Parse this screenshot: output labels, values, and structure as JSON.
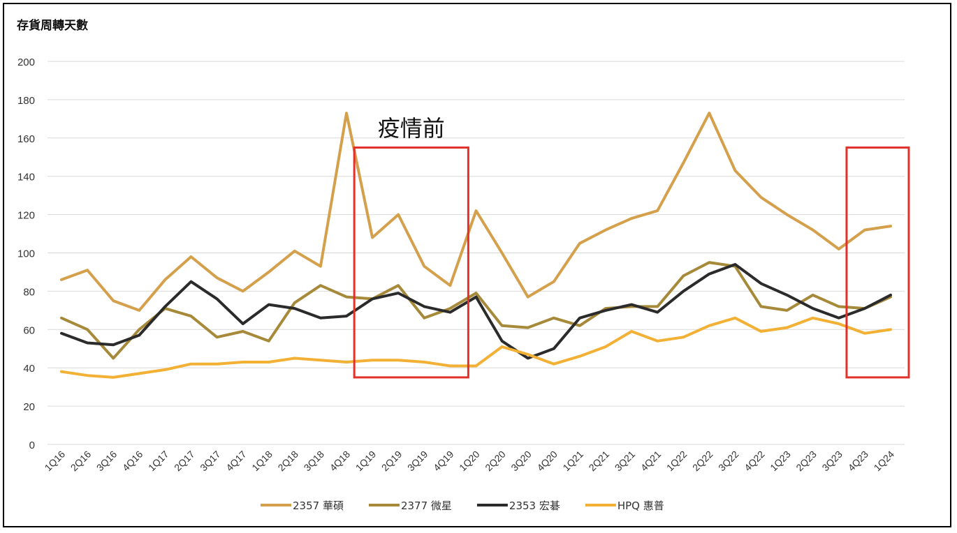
{
  "chart_data": {
    "type": "line",
    "title": "存貨周轉天數",
    "ylim": [
      0,
      200
    ],
    "yticks": [
      0,
      20,
      40,
      60,
      80,
      100,
      120,
      140,
      160,
      180,
      200
    ],
    "grid": true,
    "legend_position": "bottom",
    "categories": [
      "1Q16",
      "2Q16",
      "3Q16",
      "4Q16",
      "1Q17",
      "2Q17",
      "3Q17",
      "4Q17",
      "1Q18",
      "2Q18",
      "3Q18",
      "4Q18",
      "1Q19",
      "2Q19",
      "3Q19",
      "4Q19",
      "1Q20",
      "2Q20",
      "3Q20",
      "4Q20",
      "1Q21",
      "2Q21",
      "3Q21",
      "4Q21",
      "1Q22",
      "2Q22",
      "3Q22",
      "4Q22",
      "1Q23",
      "2Q23",
      "3Q23",
      "4Q23",
      "1Q24"
    ],
    "series": [
      {
        "name": "2357 華碩",
        "color": "#D4A04C",
        "values": [
          86,
          91,
          75,
          70,
          86,
          98,
          87,
          80,
          90,
          101,
          93,
          173,
          108,
          120,
          93,
          83,
          122,
          100,
          77,
          85,
          105,
          112,
          118,
          122,
          147,
          173,
          143,
          129,
          120,
          112,
          102,
          112,
          114
        ]
      },
      {
        "name": "2377 微星",
        "color": "#A68A3A",
        "values": [
          66,
          60,
          45,
          60,
          71,
          67,
          56,
          59,
          54,
          74,
          83,
          77,
          76,
          83,
          66,
          71,
          79,
          62,
          61,
          66,
          62,
          71,
          72,
          72,
          88,
          95,
          93,
          72,
          70,
          78,
          72,
          71,
          77
        ]
      },
      {
        "name": "2353 宏碁",
        "color": "#2B2B2B",
        "values": [
          58,
          53,
          52,
          57,
          72,
          85,
          76,
          63,
          73,
          71,
          66,
          67,
          76,
          79,
          72,
          69,
          77,
          54,
          45,
          50,
          66,
          70,
          73,
          69,
          80,
          89,
          94,
          84,
          78,
          71,
          66,
          71,
          78
        ]
      },
      {
        "name": "HPQ 惠普",
        "color": "#F2B134",
        "values": [
          38,
          36,
          35,
          37,
          39,
          42,
          42,
          43,
          43,
          45,
          44,
          43,
          44,
          44,
          43,
          41,
          41,
          51,
          47,
          42,
          46,
          51,
          59,
          54,
          56,
          62,
          66,
          59,
          61,
          66,
          63,
          58,
          60
        ]
      }
    ],
    "annotations": [
      {
        "text": "疫情前",
        "color": "#E0312B"
      }
    ],
    "highlight_ranges": [
      {
        "from": "1Q19",
        "to": "4Q19",
        "ymin": 35,
        "ymax": 155,
        "color": "#E0312B"
      },
      {
        "from": "4Q23",
        "to": "1Q24",
        "ymin": 35,
        "ymax": 155,
        "color": "#E0312B"
      }
    ]
  }
}
